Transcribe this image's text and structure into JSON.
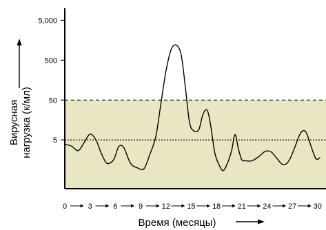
{
  "chart_data": {
    "type": "line",
    "title": "",
    "xlabel": "Время (месяцы)",
    "ylabel_line1": "Вирусная",
    "ylabel_line2": "нагрузка (к/мл)",
    "y_scale": "log",
    "ylim": [
      0.3,
      10000
    ],
    "xlim": [
      0,
      31
    ],
    "y_ticks": [
      {
        "value": 5000,
        "label": "5,000"
      },
      {
        "value": 500,
        "label": "500"
      },
      {
        "value": 50,
        "label": "50"
      },
      {
        "value": 5,
        "label": "5"
      }
    ],
    "x_ticks": [
      {
        "value": 0,
        "label": "0"
      },
      {
        "value": 3,
        "label": "3"
      },
      {
        "value": 6,
        "label": "6"
      },
      {
        "value": 9,
        "label": "9"
      },
      {
        "value": 12,
        "label": "12"
      },
      {
        "value": 15,
        "label": "15"
      },
      {
        "value": 18,
        "label": "18"
      },
      {
        "value": 21,
        "label": "21"
      },
      {
        "value": 24,
        "label": "24"
      },
      {
        "value": 27,
        "label": "27"
      },
      {
        "value": 30,
        "label": "30"
      }
    ],
    "shaded_band": {
      "from": 0.3,
      "to": 50,
      "color": "#e9e6c3"
    },
    "reference_lines": [
      {
        "value": 50,
        "style": "dashed"
      },
      {
        "value": 5,
        "style": "dotted"
      }
    ],
    "series": [
      {
        "color": "#000000",
        "x": [
          0,
          0.8,
          1.6,
          2.3,
          3.0,
          3.7,
          4.3,
          5.0,
          5.8,
          6.4,
          7.0,
          7.8,
          8.6,
          9.4,
          10.1,
          10.8,
          11.4,
          12.0,
          12.6,
          13.2,
          13.8,
          14.3,
          14.8,
          15.3,
          15.9,
          16.4,
          16.9,
          17.3,
          17.8,
          18.3,
          18.8,
          19.3,
          19.8,
          20.2,
          20.6,
          21.0,
          21.4,
          22.2,
          23.0,
          23.8,
          24.5,
          25.2,
          25.9,
          26.6,
          27.3,
          28.0,
          28.6,
          29.2,
          29.8,
          30.3
        ],
        "y": [
          3.9,
          3.5,
          2.7,
          4.3,
          7.0,
          5.0,
          2.4,
          1.3,
          1.6,
          3.4,
          3.2,
          1.3,
          1.0,
          0.95,
          2.2,
          6.0,
          40,
          260,
          900,
          1200,
          700,
          110,
          14,
          8.5,
          9,
          22,
          28,
          12,
          2.4,
          1.2,
          0.85,
          1.3,
          2.7,
          6.8,
          3.0,
          1.6,
          1.5,
          1.5,
          1.9,
          2.6,
          2.5,
          1.7,
          1.2,
          1.5,
          3.3,
          7.5,
          8.0,
          3.6,
          1.7,
          1.8
        ]
      }
    ]
  }
}
